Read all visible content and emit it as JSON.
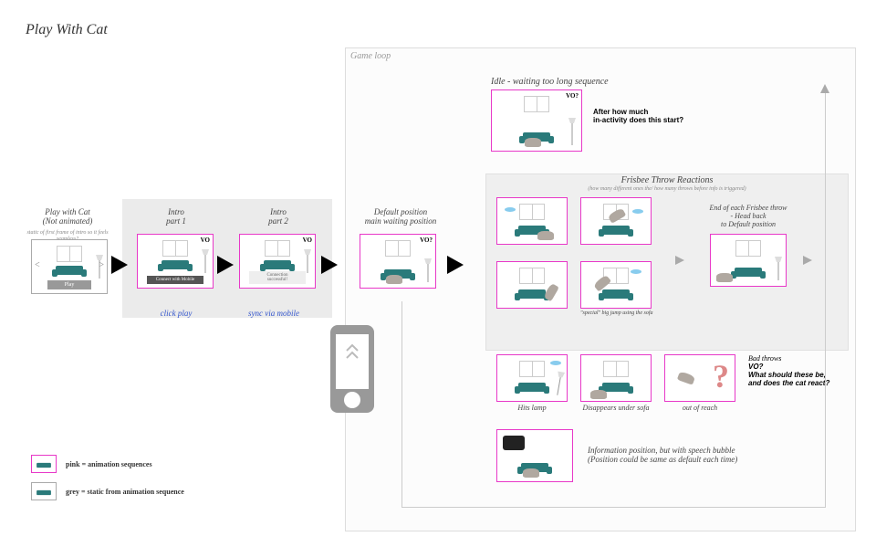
{
  "title": "Play With Cat",
  "sections": {
    "gameloop": "Game loop",
    "frisbee": "Frisbee Throw Reactions",
    "frisbee_sub": "(how many different ones the/ how many throws before info is triggered)"
  },
  "panels": {
    "notanim": {
      "title": "Play with Cat\n(Not animated)",
      "sub": "static of first frame of intro so it feels seamless?",
      "btn": "Play",
      "vo": ""
    },
    "intro1": {
      "title": "Intro\npart 1",
      "btn": "Connect with Mobile",
      "vo": "VO",
      "action": "click play"
    },
    "intro2": {
      "title": "Intro\npart 2",
      "btn": "Connection successful!",
      "vo": "VO",
      "action": "sync via mobile"
    },
    "default": {
      "title": "Default position\nmain waiting position",
      "vo": "VO?"
    },
    "idle": {
      "title": "Idle - waiting too long sequence",
      "vo": "VO?",
      "note_title": "After how much",
      "note_body": "in-activity does this start?"
    },
    "endthrow": {
      "title": "End of each Frisbee throw\n- Head back\nto Default position"
    },
    "special": "\"special\" big jump using the sofa",
    "hits": "Hits lamp",
    "disappears": "Disappears under sofa",
    "outofreach": "out of reach",
    "badthrows": {
      "title": "Bad throws",
      "vo": "VO?",
      "q1": "What should these be,",
      "q2": "and does the cat react?"
    },
    "info": {
      "line1": "Information position, but with speech bubble",
      "line2": "(Position could be same as default each time)"
    }
  },
  "legend": {
    "pink": "pink = animation sequences",
    "grey": "grey = static from animation sequence"
  },
  "colors": {
    "pink": "#e838c8",
    "grey": "#aaaaaa",
    "sofa": "#2a7a7a",
    "blue_text": "#3355cc"
  }
}
